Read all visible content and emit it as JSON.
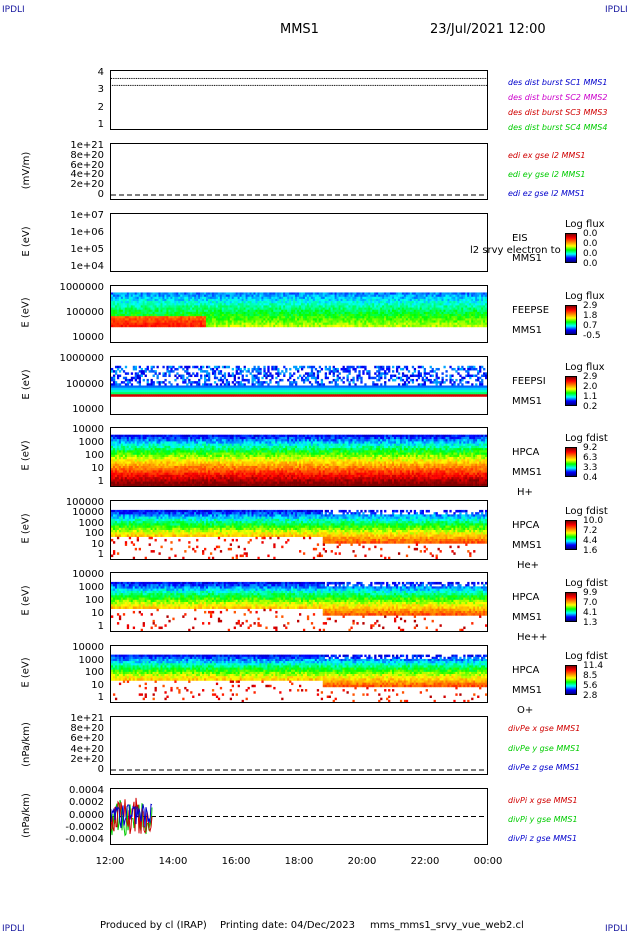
{
  "header": {
    "corner_tl": "IPDLI",
    "corner_tr": "IPDLI",
    "corner_bl": "IPDLI",
    "corner_br": "IPDLI",
    "spacecraft": "MMS1",
    "datetime": "23/Jul/2021 12:00"
  },
  "footer": {
    "produced": "Produced by cl (IRAP)",
    "printing": "Printing date: 04/Dec/2023",
    "script": "mms_mms1_srvy_vue_web2.cl"
  },
  "colors": {
    "red": "#d00000",
    "green": "#00cc00",
    "blue": "#0000cc",
    "magenta": "#cc00cc"
  },
  "chart_data": {
    "type": "heatmap",
    "x_ticks": [
      "12:00",
      "14:00",
      "16:00",
      "18:00",
      "20:00",
      "22:00",
      "00:00"
    ],
    "panels": [
      {
        "id": "p1",
        "ylabel": "",
        "ticks": [
          "4",
          "3",
          "2",
          "1"
        ],
        "right_labels": [
          {
            "text": "des dist burst SC1 MMS1",
            "color": "blue"
          },
          {
            "text": "des dist burst SC2 MMS2",
            "color": "magenta"
          },
          {
            "text": "des dist burst SC3 MMS3",
            "color": "red"
          },
          {
            "text": "des dist burst SC4 MMS4",
            "color": "green"
          }
        ]
      },
      {
        "id": "p2",
        "ylabel": "(mV/m)",
        "ticks": [
          "1e+21",
          "8e+20",
          "6e+20",
          "4e+20",
          "2e+20",
          "0"
        ],
        "right_labels": [
          {
            "text": "edi ex gse l2 MMS1",
            "color": "red"
          },
          {
            "text": "edi ey gse l2 MMS1",
            "color": "green"
          },
          {
            "text": "edi ez gse l2 MMS1",
            "color": "blue"
          }
        ]
      },
      {
        "id": "p3",
        "ylabel": "E (eV)",
        "ticks": [
          "1e+07",
          "1e+06",
          "1e+05",
          "1e+04"
        ],
        "side": [
          "EIS",
          "MMS1"
        ],
        "overlay": "l2 srvy electron to",
        "cbar_title": "Log flux",
        "cbar_values": [
          "0.0",
          "0.0",
          "0.0",
          "0.0"
        ]
      },
      {
        "id": "p4",
        "ylabel": "E (eV)",
        "ticks": [
          "1000000",
          "100000",
          "10000"
        ],
        "side": [
          "FEEPSE",
          "MMS1"
        ],
        "cbar_title": "Log flux",
        "cbar_values": [
          "2.9",
          "1.8",
          "0.7",
          "-0.5"
        ]
      },
      {
        "id": "p5",
        "ylabel": "E (eV)",
        "ticks": [
          "1000000",
          "100000",
          "10000"
        ],
        "side": [
          "FEEPSI",
          "MMS1"
        ],
        "cbar_title": "Log flux",
        "cbar_values": [
          "2.9",
          "2.0",
          "1.1",
          "0.2"
        ]
      },
      {
        "id": "p6",
        "ylabel": "E (eV)",
        "ticks": [
          "10000",
          "1000",
          "100",
          "10",
          "1"
        ],
        "side": [
          "HPCA",
          "MMS1",
          "H+"
        ],
        "cbar_title": "Log fdist",
        "cbar_values": [
          "9.2",
          "6.3",
          "3.3",
          "0.4"
        ]
      },
      {
        "id": "p7",
        "ylabel": "E (eV)",
        "ticks": [
          "100000",
          "10000",
          "1000",
          "100",
          "10",
          "1"
        ],
        "side": [
          "HPCA",
          "MMS1",
          "He+"
        ],
        "cbar_title": "Log fdist",
        "cbar_values": [
          "10.0",
          "7.2",
          "4.4",
          "1.6"
        ]
      },
      {
        "id": "p8",
        "ylabel": "E (eV)",
        "ticks": [
          "10000",
          "1000",
          "100",
          "10",
          "1"
        ],
        "side": [
          "HPCA",
          "MMS1",
          "He++"
        ],
        "cbar_title": "Log fdist",
        "cbar_values": [
          "9.9",
          "7.0",
          "4.1",
          "1.3"
        ]
      },
      {
        "id": "p9",
        "ylabel": "E (eV)",
        "ticks": [
          "10000",
          "1000",
          "100",
          "10",
          "1"
        ],
        "side": [
          "HPCA",
          "MMS1",
          "O+"
        ],
        "cbar_title": "Log fdist",
        "cbar_values": [
          "11.4",
          "8.5",
          "5.6",
          "2.8"
        ]
      },
      {
        "id": "p10",
        "ylabel": "(nPa/km)",
        "ticks": [
          "1e+21",
          "8e+20",
          "6e+20",
          "4e+20",
          "2e+20",
          "0"
        ],
        "right_labels": [
          {
            "text": "divPe x gse MMS1",
            "color": "red"
          },
          {
            "text": "divPe y gse MMS1",
            "color": "green"
          },
          {
            "text": "divPe z gse MMS1",
            "color": "blue"
          }
        ]
      },
      {
        "id": "p11",
        "ylabel": "(nPa/km)",
        "ticks": [
          "0.0004",
          "0.0002",
          "0.0000",
          "-0.0002",
          "-0.0004"
        ],
        "right_labels": [
          {
            "text": "divPi x gse MMS1",
            "color": "red"
          },
          {
            "text": "divPi y gse MMS1",
            "color": "green"
          },
          {
            "text": "divPi z gse MMS1",
            "color": "blue"
          }
        ]
      }
    ]
  }
}
